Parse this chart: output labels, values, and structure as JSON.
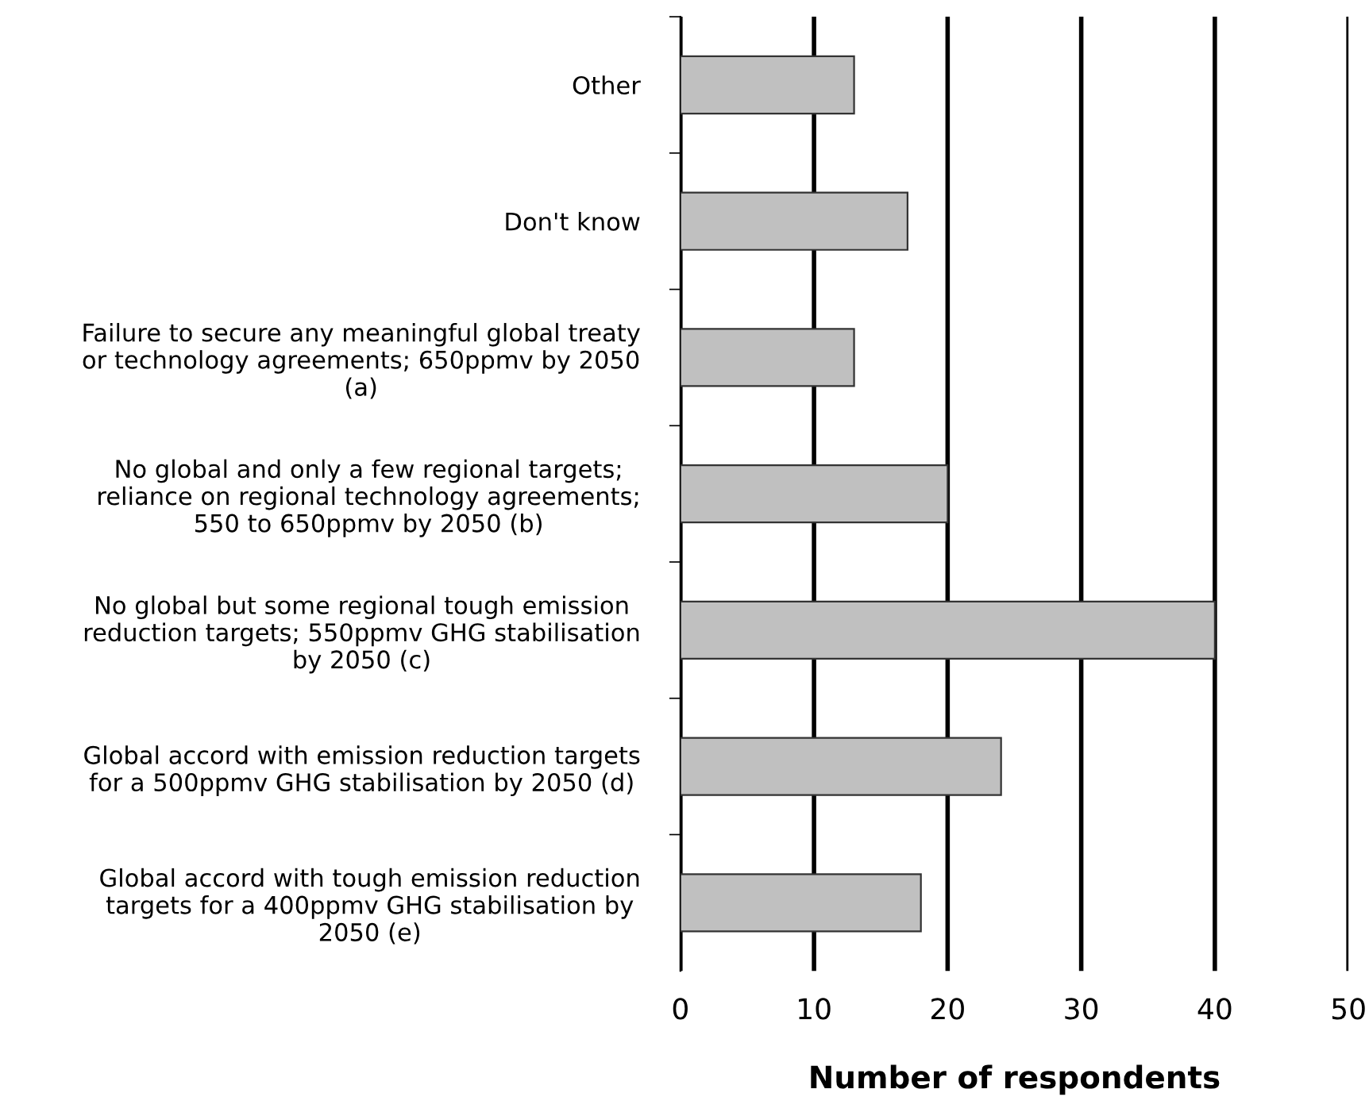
{
  "chart_data": {
    "type": "bar",
    "orientation": "horizontal",
    "xlabel": "Number of respondents",
    "categories": [
      "Other",
      "Don't know",
      "Failure to secure any meaningful global treaty\nor technology agreements; 650ppmv by 2050\n(a)",
      "No global and only a few regional targets;\nreliance on regional technology agreements;\n550 to 650ppmv by 2050 (b)",
      "No global but some regional tough emission\nreduction targets; 550ppmv GHG stabilisation\nby 2050 (c)",
      "Global accord with emission reduction targets\nfor a 500ppmv GHG stabilisation by 2050 (d)",
      "Global accord with tough emission reduction\ntargets for a 400ppmv GHG stabilisation by\n2050 (e)"
    ],
    "values": [
      13,
      17,
      13,
      20,
      40,
      24,
      18
    ],
    "color": "#c0c0c0",
    "xlim": [
      0,
      50
    ],
    "xticks": [
      0,
      10,
      20,
      30,
      40,
      50
    ],
    "grid": "x",
    "legend": false
  }
}
